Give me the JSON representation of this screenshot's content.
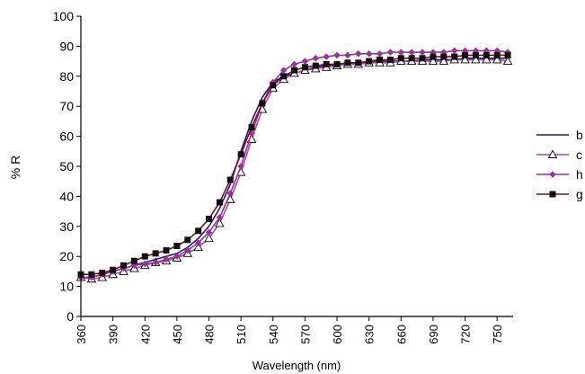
{
  "chart_data": {
    "type": "line",
    "xlabel": "Wavelength (nm)",
    "ylabel": "% R",
    "xlim": [
      360,
      765
    ],
    "ylim": [
      0,
      100
    ],
    "xticks": [
      360,
      390,
      420,
      450,
      480,
      510,
      540,
      570,
      600,
      630,
      660,
      690,
      720,
      750
    ],
    "yticks": [
      0,
      10,
      20,
      30,
      40,
      50,
      60,
      70,
      80,
      90,
      100
    ],
    "grid": false,
    "legend_position": "right",
    "x": [
      360,
      370,
      380,
      390,
      400,
      410,
      420,
      430,
      440,
      450,
      460,
      470,
      480,
      490,
      500,
      510,
      520,
      530,
      540,
      550,
      560,
      570,
      580,
      590,
      600,
      610,
      620,
      630,
      640,
      650,
      660,
      670,
      680,
      690,
      700,
      710,
      720,
      730,
      740,
      750,
      760
    ],
    "series": [
      {
        "name": "b",
        "color": "#1a1a7a",
        "marker": "none",
        "values": [
          13,
          13,
          14,
          15,
          16,
          17,
          18,
          19,
          20,
          21,
          23,
          26,
          30,
          36,
          44,
          55,
          65,
          73,
          78,
          80,
          81,
          82,
          83,
          83.5,
          84,
          84,
          84.5,
          84.5,
          85,
          85,
          85,
          85,
          85.5,
          85.5,
          85.5,
          85.5,
          86,
          86,
          86,
          86,
          86
        ]
      },
      {
        "name": "c",
        "color": "#aa44aa",
        "marker": "triangle",
        "values": [
          13,
          12.5,
          13,
          14,
          15,
          16,
          17,
          18,
          18.5,
          19.5,
          21,
          23,
          26,
          31,
          39,
          48,
          59,
          69,
          76,
          79,
          81,
          82,
          82.5,
          83,
          83.5,
          84,
          84,
          84.5,
          84.5,
          84.5,
          85,
          85,
          85,
          85,
          85,
          85.5,
          85.5,
          85.5,
          85.5,
          85.5,
          85
        ]
      },
      {
        "name": "h",
        "color": "#993399",
        "marker": "diamond",
        "values": [
          13,
          13,
          14,
          15,
          16,
          17,
          17.5,
          18,
          19,
          20,
          22,
          24.5,
          28,
          33,
          41,
          50,
          61,
          71,
          78,
          82,
          84,
          85,
          86,
          86.5,
          87,
          87,
          87.5,
          87.5,
          87.5,
          88,
          88,
          88,
          88,
          88,
          88,
          88.5,
          88.5,
          88.5,
          88.5,
          88.5,
          88
        ]
      },
      {
        "name": "g",
        "color": "#111111",
        "line_color": "#7a1010",
        "marker": "square",
        "values": [
          14,
          14,
          14.5,
          15.5,
          17,
          18.5,
          20,
          21,
          22,
          23.5,
          25.5,
          28.5,
          32.5,
          38,
          45.5,
          54,
          63,
          71,
          77,
          80,
          82,
          83,
          83.5,
          84,
          84,
          84.5,
          84.5,
          85,
          85.5,
          85.5,
          86,
          86,
          86,
          86.5,
          86.5,
          86.5,
          87,
          87,
          87,
          87,
          87
        ]
      }
    ]
  }
}
